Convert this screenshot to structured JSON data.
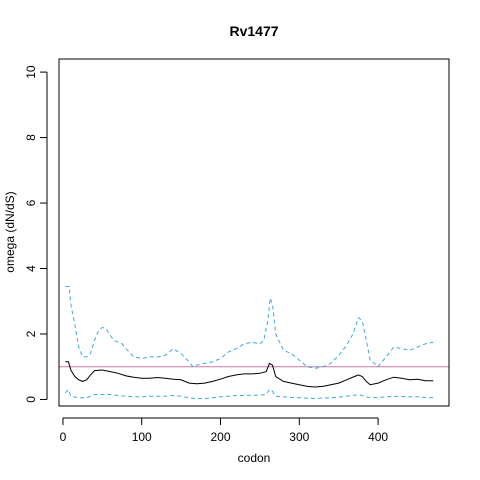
{
  "chart_data": {
    "type": "line",
    "title": "Rv1477",
    "xlabel": "codon",
    "ylabel": "omega (dN/dS)",
    "xlim": [
      -5,
      490
    ],
    "ylim": [
      -0.2,
      10.4
    ],
    "x_ticks": [
      0,
      100,
      200,
      300,
      400
    ],
    "y_ticks": [
      0,
      2,
      4,
      6,
      8,
      10
    ],
    "grid": false,
    "reference_line": {
      "y": 1,
      "color": "#cc79a7"
    },
    "series": [
      {
        "role": "upper",
        "color": "#3fa9dc",
        "style": "dashed",
        "points": [
          [
            3,
            3.45
          ],
          [
            8,
            3.45
          ],
          [
            10,
            2.9
          ],
          [
            15,
            2.3
          ],
          [
            20,
            1.6
          ],
          [
            25,
            1.3
          ],
          [
            30,
            1.3
          ],
          [
            35,
            1.4
          ],
          [
            40,
            1.8
          ],
          [
            45,
            2.1
          ],
          [
            50,
            2.2
          ],
          [
            55,
            2.15
          ],
          [
            60,
            1.95
          ],
          [
            65,
            1.8
          ],
          [
            70,
            1.75
          ],
          [
            75,
            1.7
          ],
          [
            80,
            1.55
          ],
          [
            90,
            1.3
          ],
          [
            100,
            1.25
          ],
          [
            110,
            1.3
          ],
          [
            120,
            1.3
          ],
          [
            130,
            1.35
          ],
          [
            140,
            1.55
          ],
          [
            150,
            1.4
          ],
          [
            160,
            1.15
          ],
          [
            165,
            1.0
          ],
          [
            170,
            1.05
          ],
          [
            180,
            1.1
          ],
          [
            190,
            1.15
          ],
          [
            200,
            1.25
          ],
          [
            210,
            1.45
          ],
          [
            220,
            1.55
          ],
          [
            230,
            1.7
          ],
          [
            240,
            1.75
          ],
          [
            250,
            1.7
          ],
          [
            255,
            1.8
          ],
          [
            260,
            2.4
          ],
          [
            263,
            3.1
          ],
          [
            266,
            2.9
          ],
          [
            270,
            2.0
          ],
          [
            280,
            1.5
          ],
          [
            290,
            1.4
          ],
          [
            300,
            1.2
          ],
          [
            310,
            1.0
          ],
          [
            320,
            0.95
          ],
          [
            330,
            1.0
          ],
          [
            340,
            1.1
          ],
          [
            350,
            1.35
          ],
          [
            360,
            1.65
          ],
          [
            368,
            2.0
          ],
          [
            375,
            2.5
          ],
          [
            380,
            2.4
          ],
          [
            385,
            1.8
          ],
          [
            390,
            1.2
          ],
          [
            395,
            1.1
          ],
          [
            400,
            1.0
          ],
          [
            410,
            1.3
          ],
          [
            420,
            1.6
          ],
          [
            430,
            1.55
          ],
          [
            440,
            1.5
          ],
          [
            450,
            1.6
          ],
          [
            460,
            1.7
          ],
          [
            470,
            1.75
          ]
        ]
      },
      {
        "role": "estimate",
        "color": "#000000",
        "style": "solid",
        "points": [
          [
            3,
            1.15
          ],
          [
            7,
            1.15
          ],
          [
            10,
            0.9
          ],
          [
            15,
            0.7
          ],
          [
            20,
            0.6
          ],
          [
            25,
            0.55
          ],
          [
            30,
            0.6
          ],
          [
            35,
            0.75
          ],
          [
            40,
            0.88
          ],
          [
            50,
            0.9
          ],
          [
            60,
            0.85
          ],
          [
            70,
            0.8
          ],
          [
            80,
            0.72
          ],
          [
            90,
            0.68
          ],
          [
            100,
            0.65
          ],
          [
            110,
            0.65
          ],
          [
            120,
            0.67
          ],
          [
            130,
            0.65
          ],
          [
            140,
            0.62
          ],
          [
            150,
            0.6
          ],
          [
            160,
            0.5
          ],
          [
            170,
            0.48
          ],
          [
            180,
            0.5
          ],
          [
            190,
            0.55
          ],
          [
            200,
            0.62
          ],
          [
            210,
            0.7
          ],
          [
            220,
            0.75
          ],
          [
            230,
            0.78
          ],
          [
            240,
            0.78
          ],
          [
            250,
            0.8
          ],
          [
            258,
            0.85
          ],
          [
            262,
            1.1
          ],
          [
            266,
            1.05
          ],
          [
            270,
            0.7
          ],
          [
            280,
            0.55
          ],
          [
            290,
            0.5
          ],
          [
            300,
            0.45
          ],
          [
            310,
            0.4
          ],
          [
            320,
            0.38
          ],
          [
            330,
            0.4
          ],
          [
            340,
            0.45
          ],
          [
            350,
            0.5
          ],
          [
            360,
            0.6
          ],
          [
            370,
            0.7
          ],
          [
            375,
            0.75
          ],
          [
            380,
            0.7
          ],
          [
            385,
            0.55
          ],
          [
            390,
            0.45
          ],
          [
            400,
            0.5
          ],
          [
            410,
            0.6
          ],
          [
            420,
            0.68
          ],
          [
            430,
            0.65
          ],
          [
            440,
            0.6
          ],
          [
            450,
            0.62
          ],
          [
            460,
            0.57
          ],
          [
            470,
            0.57
          ]
        ]
      },
      {
        "role": "lower",
        "color": "#3fa9dc",
        "style": "dashed",
        "points": [
          [
            3,
            0.2
          ],
          [
            7,
            0.3
          ],
          [
            10,
            0.1
          ],
          [
            20,
            0.05
          ],
          [
            30,
            0.05
          ],
          [
            40,
            0.15
          ],
          [
            50,
            0.15
          ],
          [
            60,
            0.15
          ],
          [
            70,
            0.12
          ],
          [
            80,
            0.1
          ],
          [
            90,
            0.08
          ],
          [
            100,
            0.08
          ],
          [
            110,
            0.1
          ],
          [
            120,
            0.1
          ],
          [
            130,
            0.1
          ],
          [
            140,
            0.12
          ],
          [
            150,
            0.1
          ],
          [
            160,
            0.05
          ],
          [
            170,
            0.03
          ],
          [
            180,
            0.03
          ],
          [
            190,
            0.05
          ],
          [
            200,
            0.08
          ],
          [
            210,
            0.1
          ],
          [
            220,
            0.12
          ],
          [
            230,
            0.12
          ],
          [
            240,
            0.13
          ],
          [
            250,
            0.13
          ],
          [
            258,
            0.15
          ],
          [
            262,
            0.3
          ],
          [
            266,
            0.25
          ],
          [
            270,
            0.1
          ],
          [
            280,
            0.08
          ],
          [
            290,
            0.06
          ],
          [
            300,
            0.05
          ],
          [
            310,
            0.04
          ],
          [
            320,
            0.03
          ],
          [
            330,
            0.04
          ],
          [
            340,
            0.05
          ],
          [
            350,
            0.07
          ],
          [
            360,
            0.1
          ],
          [
            370,
            0.13
          ],
          [
            375,
            0.15
          ],
          [
            380,
            0.12
          ],
          [
            385,
            0.08
          ],
          [
            390,
            0.05
          ],
          [
            400,
            0.06
          ],
          [
            410,
            0.08
          ],
          [
            420,
            0.1
          ],
          [
            430,
            0.09
          ],
          [
            440,
            0.08
          ],
          [
            450,
            0.08
          ],
          [
            460,
            0.06
          ],
          [
            470,
            0.05
          ]
        ]
      }
    ]
  }
}
